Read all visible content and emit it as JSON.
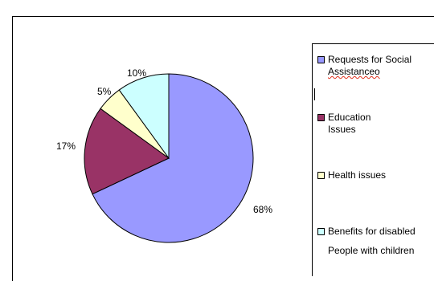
{
  "colors": {
    "slice_social": "#9999ff",
    "slice_education": "#993366",
    "slice_health": "#ffffcc",
    "slice_benefits": "#ccffff",
    "outline": "#000000"
  },
  "legend": {
    "items": [
      {
        "line1": "Requests for Social",
        "line2": "Assistanceo"
      },
      {
        "line1": "Education",
        "line2": "Issues"
      },
      {
        "line1": "Health issues",
        "line2": ""
      },
      {
        "line1": "Benefits for disabled",
        "line2": "People with children"
      }
    ]
  },
  "chart_data": {
    "type": "pie",
    "categories": [
      "Requests for Social Assistanceo",
      "Education Issues",
      "Health issues",
      "Benefits for disabled People with children"
    ],
    "values": [
      68,
      17,
      5,
      10
    ],
    "labels": [
      "68%",
      "17%",
      "5%",
      "10%"
    ],
    "legend_position": "right"
  }
}
